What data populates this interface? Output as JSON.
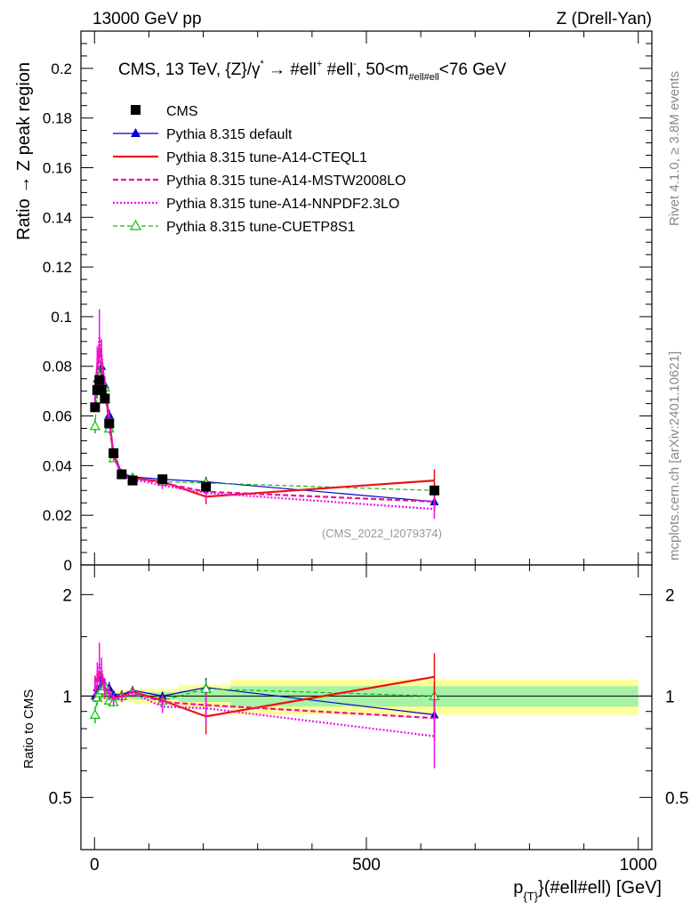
{
  "header": {
    "left": "13000 GeV pp",
    "right": "Z (Drell-Yan)"
  },
  "side_labels": {
    "rivet": "Rivet 4.1.0, ≥ 3.8M events",
    "mcplots": "mcplots.cern.ch [arXiv:2401.10621]"
  },
  "colors": {
    "cms": "#000000",
    "default": "#0000cc",
    "cteql1": "#ee1111",
    "mstw": "#ee1199",
    "nnpdf": "#ee11ee",
    "cuetp8s1": "#11bb11",
    "band_inner": "#a6f2a6",
    "band_outer": "#ffff99"
  },
  "chart_data": [
    {
      "type": "line",
      "panel": "main",
      "title": "CMS, 13 TeV, {Z}/γ* → #ell⁺ #ell⁻, 50<m#ell#ell<76 GeV",
      "title_parts": {
        "lead": "CMS, 13 TeV, {Z}/γ",
        "star": "*",
        "arrow": " →  #ell",
        "plus": "+",
        "mid": " #ell",
        "minus": "-",
        "mass_pre": ", 50<m",
        "mass_sub": "#ell#ell",
        "mass_post": "<76 GeV"
      },
      "ylabel": "Ratio → Z peak region",
      "xlabel_parts": {
        "p": "p",
        "sub": "{T}",
        "rest": "}(#ell#ell) [GeV]"
      },
      "watermark": "(CMS_2022_I2079374)",
      "xlim": [
        -25,
        1025
      ],
      "ylim": [
        0,
        0.215
      ],
      "yticks": [
        0,
        0.02,
        0.04,
        0.06,
        0.08,
        0.1,
        0.12,
        0.14,
        0.16,
        0.18,
        0.2
      ],
      "ytick_labels": [
        "0",
        "0.02",
        "0.04",
        "0.06",
        "0.08",
        "0.1",
        "0.12",
        "0.14",
        "0.16",
        "0.18",
        "0.2"
      ],
      "x": [
        1,
        5,
        9,
        13,
        19,
        27,
        35,
        50,
        70,
        125,
        205,
        625
      ],
      "cms": {
        "name": "CMS",
        "values": [
          0.0635,
          0.0705,
          0.0745,
          0.0705,
          0.067,
          0.057,
          0.045,
          0.0365,
          0.034,
          0.0345,
          0.0315,
          0.03
        ],
        "errors": [
          0.0015,
          0.0012,
          0.0012,
          0.0012,
          0.0012,
          0.001,
          0.001,
          0.0008,
          0.0008,
          0.001,
          0.0013,
          0.002
        ]
      },
      "series": [
        {
          "name": "Pythia 8.315 default",
          "key": "default",
          "marker": "triangle",
          "dash": "",
          "values": [
            0.064,
            0.075,
            0.0765,
            0.08,
            0.0725,
            0.0605,
            0.0455,
            0.037,
            0.0355,
            0.0345,
            0.0335,
            0.0255
          ],
          "errors": [
            0.002,
            0.003,
            0.003,
            0.003,
            0.0025,
            0.002,
            0.0015,
            0.001,
            0.001,
            0.001,
            0.002,
            0.003
          ]
        },
        {
          "name": "Pythia 8.315 tune-A14-CTEQL1",
          "key": "cteql1",
          "marker": "none",
          "dash": "",
          "values": [
            0.07,
            0.08,
            0.088,
            0.083,
            0.071,
            0.059,
            0.044,
            0.0365,
            0.035,
            0.0335,
            0.0275,
            0.034
          ],
          "errors": [
            0.003,
            0.004,
            0.004,
            0.004,
            0.003,
            0.002,
            0.0015,
            0.001,
            0.001,
            0.0015,
            0.003,
            0.0045
          ]
        },
        {
          "name": "Pythia 8.315 tune-A14-MSTW2008LO",
          "key": "mstw",
          "marker": "none",
          "dash": "6,3",
          "values": [
            0.066,
            0.078,
            0.087,
            0.08,
            0.069,
            0.058,
            0.0445,
            0.036,
            0.035,
            0.033,
            0.0295,
            0.0255
          ],
          "errors": [
            0.003,
            0.004,
            0.005,
            0.004,
            0.003,
            0.002,
            0.0015,
            0.001,
            0.001,
            0.0015,
            0.003,
            0.004
          ]
        },
        {
          "name": "Pythia 8.315 tune-A14-NNPDF2.3LO",
          "key": "nnpdf",
          "marker": "none",
          "dash": "2,2",
          "values": [
            0.068,
            0.082,
            0.092,
            0.085,
            0.072,
            0.058,
            0.044,
            0.036,
            0.0345,
            0.032,
            0.029,
            0.0225
          ],
          "errors": [
            0.004,
            0.006,
            0.011,
            0.006,
            0.004,
            0.003,
            0.002,
            0.0012,
            0.0012,
            0.0015,
            0.003,
            0.004
          ]
        },
        {
          "name": "Pythia 8.315 tune-CUETP8S1",
          "key": "cuetp8s1",
          "marker": "open-triangle",
          "dash": "5,3",
          "values": [
            0.056,
            0.07,
            0.076,
            0.0735,
            0.0715,
            0.055,
            0.043,
            0.0365,
            0.035,
            0.0335,
            0.033,
            0.03
          ],
          "errors": [
            0.003,
            0.003,
            0.004,
            0.003,
            0.003,
            0.002,
            0.0015,
            0.001,
            0.001,
            0.0015,
            0.002,
            0.003
          ]
        }
      ]
    },
    {
      "type": "line",
      "panel": "ratio",
      "ylabel": "Ratio to CMS",
      "xlim": [
        -25,
        1025
      ],
      "ylim": [
        0.35,
        2.45
      ],
      "yticks": [
        0.5,
        1,
        2
      ],
      "ytick_labels": [
        "0.5",
        "1",
        "2"
      ],
      "xticks": [
        0,
        500,
        1000
      ],
      "xtick_labels": [
        "0",
        "500",
        "1000"
      ],
      "band_bins": [
        {
          "x0": 0,
          "x1": 70,
          "inner": 0.02,
          "outer": 0.04
        },
        {
          "x0": 70,
          "x1": 155,
          "inner": 0.025,
          "outer": 0.05
        },
        {
          "x0": 155,
          "x1": 250,
          "inner": 0.04,
          "outer": 0.08
        },
        {
          "x0": 250,
          "x1": 1000,
          "inner": 0.07,
          "outer": 0.12
        }
      ],
      "x": [
        1,
        5,
        9,
        13,
        19,
        27,
        35,
        50,
        70,
        125,
        205,
        625
      ],
      "series": [
        {
          "key": "default",
          "marker": "triangle",
          "dash": "",
          "values": [
            1.0,
            1.06,
            1.02,
            1.13,
            1.08,
            1.06,
            1.01,
            1.01,
            1.04,
            1.0,
            1.06,
            0.88
          ],
          "errors": [
            0.04,
            0.05,
            0.05,
            0.05,
            0.04,
            0.04,
            0.03,
            0.03,
            0.03,
            0.03,
            0.07,
            0.1
          ]
        },
        {
          "key": "cteql1",
          "marker": "none",
          "dash": "",
          "values": [
            1.1,
            1.13,
            1.18,
            1.17,
            1.06,
            1.03,
            0.98,
            1.0,
            1.03,
            0.97,
            0.87,
            1.14
          ],
          "errors": [
            0.05,
            0.06,
            0.06,
            0.06,
            0.05,
            0.04,
            0.03,
            0.03,
            0.03,
            0.04,
            0.1,
            0.2
          ]
        },
        {
          "key": "mstw",
          "marker": "none",
          "dash": "6,3",
          "values": [
            1.04,
            1.1,
            1.17,
            1.13,
            1.03,
            1.02,
            0.99,
            0.99,
            1.03,
            0.96,
            0.94,
            0.86
          ],
          "errors": [
            0.05,
            0.06,
            0.07,
            0.06,
            0.05,
            0.04,
            0.03,
            0.03,
            0.03,
            0.04,
            0.09,
            0.12
          ]
        },
        {
          "key": "nnpdf",
          "marker": "none",
          "dash": "2,2",
          "values": [
            1.07,
            1.16,
            1.24,
            1.2,
            1.07,
            1.02,
            0.98,
            0.99,
            1.02,
            0.93,
            0.92,
            0.76
          ],
          "errors": [
            0.07,
            0.1,
            0.2,
            0.1,
            0.06,
            0.05,
            0.04,
            0.03,
            0.03,
            0.04,
            0.09,
            0.15
          ]
        },
        {
          "key": "cuetp8s1",
          "marker": "open-triangle",
          "dash": "5,3",
          "values": [
            0.88,
            0.99,
            1.02,
            1.04,
            1.07,
            0.97,
            0.96,
            1.0,
            1.03,
            0.97,
            1.05,
            1.0
          ],
          "errors": [
            0.05,
            0.05,
            0.05,
            0.05,
            0.04,
            0.04,
            0.03,
            0.03,
            0.03,
            0.04,
            0.07,
            0.1
          ]
        }
      ]
    }
  ]
}
